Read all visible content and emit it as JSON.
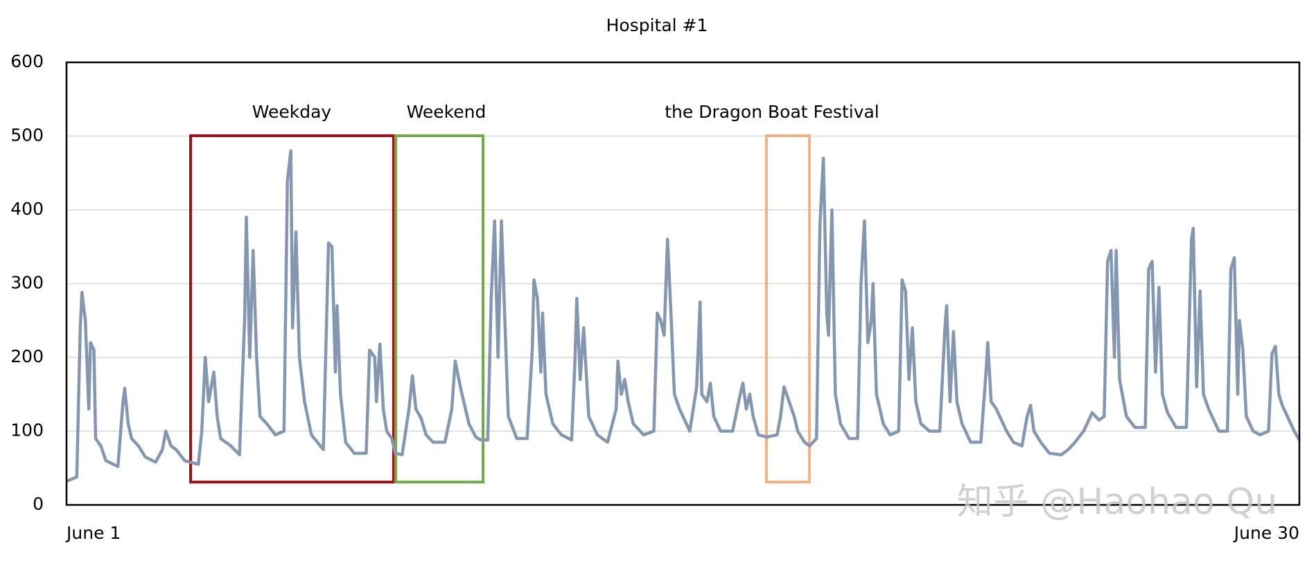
{
  "chart_data": {
    "type": "line",
    "title": "Hospital #1",
    "x": [
      0,
      6,
      8,
      9,
      11,
      13,
      14,
      16,
      17,
      20,
      23,
      30,
      33,
      34,
      36,
      38,
      42,
      46,
      52,
      56,
      58,
      61,
      64,
      69,
      77,
      79,
      81,
      83,
      86,
      88,
      90,
      96,
      101,
      104,
      105,
      107,
      109,
      111,
      113,
      117,
      122,
      127,
      129,
      131,
      132,
      134,
      136,
      139,
      143,
      150,
      153,
      155,
      157,
      158,
      160,
      163,
      168,
      175,
      177,
      180,
      181,
      183,
      185,
      187,
      190,
      192,
      196,
      200,
      202,
      204,
      207,
      210,
      214,
      221,
      225,
      227,
      230,
      233,
      235,
      239,
      242,
      246,
      248,
      250,
      252,
      254,
      256,
      258,
      263,
      269,
      272,
      273,
      275,
      277,
      278,
      280,
      284,
      289,
      295,
      297,
      298,
      300,
      302,
      305,
      310,
      316,
      321,
      322,
      324,
      326,
      328,
      331,
      337,
      343,
      345,
      347,
      349,
      351,
      353,
      355,
      358,
      360,
      364,
      368,
      370,
      371,
      374,
      376,
      378,
      382,
      389,
      393,
      395,
      397,
      399,
      401,
      404,
      409,
      415,
      417,
      419,
      422,
      425,
      427,
      431,
      434,
      438,
      440,
      442,
      444,
      445,
      447,
      449,
      452,
      457,
      462,
      464,
      466,
      468,
      470,
      471,
      473,
      477,
      481,
      486,
      488,
      490,
      492,
      494,
      496,
      499,
      504,
      510,
      513,
      514,
      516,
      518,
      520,
      523,
      528,
      534,
      537,
      538,
      540,
      543,
      545,
      549,
      553,
      558,
      561,
      563,
      565,
      569,
      574,
      581,
      585,
      589,
      594,
      599,
      603,
      606,
      608,
      610,
      612,
      613,
      615,
      619,
      624,
      630,
      632,
      634,
      636,
      638,
      640,
      643,
      648,
      654,
      657,
      658,
      660,
      662,
      664,
      667,
      673,
      678,
      680,
      682,
      684,
      685,
      687,
      689,
      693,
      697,
      702,
      704,
      706,
      708,
      710,
      713,
      717,
      720
    ],
    "values": [
      32,
      38,
      240,
      288,
      250,
      130,
      220,
      210,
      90,
      80,
      60,
      52,
      140,
      158,
      110,
      90,
      80,
      65,
      58,
      75,
      100,
      80,
      75,
      60,
      55,
      100,
      200,
      140,
      180,
      120,
      90,
      80,
      68,
      250,
      390,
      200,
      345,
      200,
      120,
      110,
      95,
      100,
      440,
      480,
      240,
      370,
      200,
      140,
      95,
      75,
      355,
      350,
      180,
      270,
      150,
      85,
      70,
      70,
      210,
      200,
      140,
      218,
      130,
      100,
      90,
      70,
      68,
      130,
      175,
      130,
      118,
      95,
      85,
      85,
      130,
      195,
      160,
      130,
      110,
      92,
      88,
      88,
      280,
      385,
      200,
      385,
      250,
      120,
      90,
      90,
      210,
      305,
      280,
      180,
      260,
      150,
      110,
      95,
      88,
      200,
      280,
      170,
      240,
      120,
      95,
      85,
      130,
      195,
      150,
      170,
      140,
      110,
      95,
      100,
      260,
      250,
      230,
      360,
      260,
      150,
      130,
      120,
      100,
      160,
      275,
      150,
      140,
      165,
      120,
      100,
      100,
      145,
      165,
      130,
      150,
      120,
      95,
      92,
      95,
      120,
      160,
      140,
      120,
      100,
      85,
      80,
      90,
      380,
      470,
      260,
      230,
      400,
      150,
      110,
      90,
      90,
      300,
      385,
      220,
      250,
      300,
      150,
      110,
      95,
      100,
      305,
      290,
      170,
      240,
      140,
      110,
      100,
      100,
      240,
      270,
      140,
      235,
      140,
      110,
      85,
      85,
      180,
      220,
      140,
      130,
      120,
      100,
      85,
      80,
      120,
      135,
      100,
      85,
      70,
      68,
      75,
      85,
      100,
      125,
      115,
      120,
      330,
      345,
      200,
      345,
      170,
      120,
      105,
      105,
      320,
      330,
      180,
      295,
      150,
      125,
      105,
      105,
      360,
      375,
      160,
      290,
      150,
      130,
      100,
      100,
      320,
      335,
      150,
      250,
      210,
      120,
      100,
      95,
      100,
      205,
      215,
      150,
      135,
      120,
      100,
      88
    ],
    "color": "#8497b0",
    "xlim": [
      0,
      720
    ],
    "xticks": [
      {
        "value": 0,
        "label": "June 1"
      },
      {
        "value": 720,
        "label": "June 30"
      }
    ],
    "ylim": [
      0,
      600
    ],
    "yticks": [
      0,
      100,
      200,
      300,
      400,
      500,
      600
    ],
    "grid": true,
    "annotations": [
      "Weekday",
      "Weekend",
      "the Dragon Boat Festival"
    ],
    "watermark": "知乎 @Haohao Qu"
  }
}
